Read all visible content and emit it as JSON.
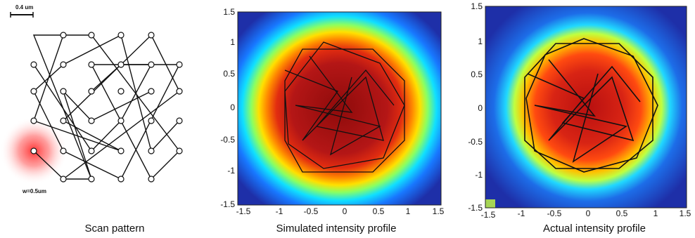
{
  "scale_bar_label": "0.4 um",
  "beam_width_label": "w=0.5um",
  "captions": [
    "Scan pattern",
    "Simulated intensity profile",
    "Actual intensity profile"
  ],
  "panels": [
    {
      "xticks": [
        "-1.5",
        "-1",
        "-0.5",
        "0",
        "0.5",
        "1",
        "1.5"
      ],
      "yticks": [
        "1.5",
        "1",
        "0.5",
        "0",
        "-0.5",
        "-1",
        "-1.5"
      ]
    },
    {
      "xticks": [
        "-1.5",
        "-1",
        "-0.5",
        "0",
        "0.5",
        "1",
        "1.5"
      ],
      "yticks": [
        "1.5",
        "1",
        "0.5",
        "0",
        "-0.5",
        "-1",
        "-1.5"
      ]
    }
  ],
  "colors": {
    "background": "#1e2fa8",
    "hot": "#b31010",
    "beam_spot": "#ff3c3c",
    "pattern_line": "#111111"
  }
}
